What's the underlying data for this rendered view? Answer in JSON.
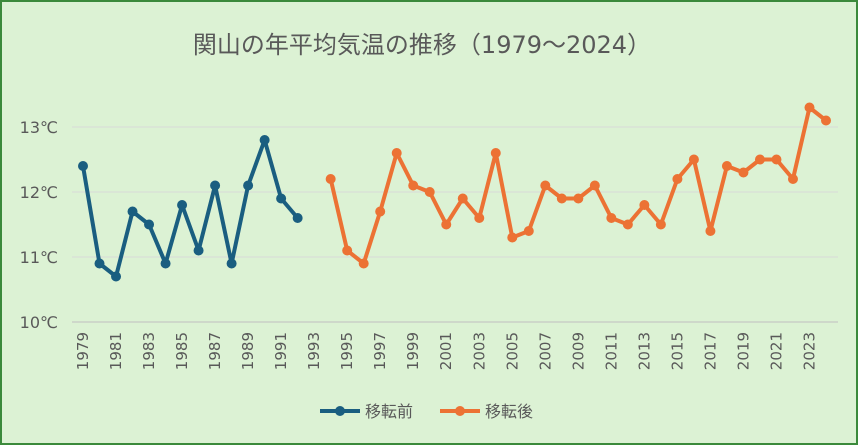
{
  "chart_data": {
    "type": "line",
    "title": "関山の年平均気温の推移（1979～2024）",
    "xlabel": "",
    "ylabel": "",
    "x": [
      1979,
      1980,
      1981,
      1982,
      1983,
      1984,
      1985,
      1986,
      1987,
      1988,
      1989,
      1990,
      1991,
      1992,
      1993,
      1994,
      1995,
      1996,
      1997,
      1998,
      1999,
      2000,
      2001,
      2002,
      2003,
      2004,
      2005,
      2006,
      2007,
      2008,
      2009,
      2010,
      2011,
      2012,
      2013,
      2014,
      2015,
      2016,
      2017,
      2018,
      2019,
      2020,
      2021,
      2022,
      2023,
      2024
    ],
    "x_tick_labels": [
      "1979",
      "1981",
      "1983",
      "1985",
      "1987",
      "1989",
      "1991",
      "1993",
      "1995",
      "1997",
      "1999",
      "2001",
      "2003",
      "2005",
      "2007",
      "2009",
      "2011",
      "2013",
      "2015",
      "2017",
      "2019",
      "2021",
      "2023"
    ],
    "y_tick_labels": [
      "10℃",
      "11℃",
      "12℃",
      "13℃"
    ],
    "y_ticks": [
      10,
      11,
      12,
      13
    ],
    "ylim": [
      10,
      13.6
    ],
    "grid": true,
    "legend_position": "bottom",
    "series": [
      {
        "name": "移転前",
        "color": "#1a5e80",
        "values": [
          12.4,
          10.9,
          10.7,
          11.7,
          11.5,
          10.9,
          11.8,
          11.1,
          12.1,
          10.9,
          12.1,
          12.8,
          11.9,
          11.6,
          null,
          null,
          null,
          null,
          null,
          null,
          null,
          null,
          null,
          null,
          null,
          null,
          null,
          null,
          null,
          null,
          null,
          null,
          null,
          null,
          null,
          null,
          null,
          null,
          null,
          null,
          null,
          null,
          null,
          null,
          null,
          null
        ]
      },
      {
        "name": "移転後",
        "color": "#ec7234",
        "values": [
          null,
          null,
          null,
          null,
          null,
          null,
          null,
          null,
          null,
          null,
          null,
          null,
          null,
          null,
          null,
          12.2,
          11.1,
          10.9,
          11.7,
          12.6,
          12.1,
          12.0,
          11.5,
          11.9,
          11.6,
          12.6,
          11.3,
          11.4,
          12.1,
          11.9,
          11.9,
          12.1,
          11.6,
          11.5,
          11.8,
          11.5,
          12.2,
          12.5,
          11.4,
          12.4,
          12.3,
          12.5,
          12.5,
          12.2,
          13.3,
          13.1
        ]
      }
    ]
  }
}
